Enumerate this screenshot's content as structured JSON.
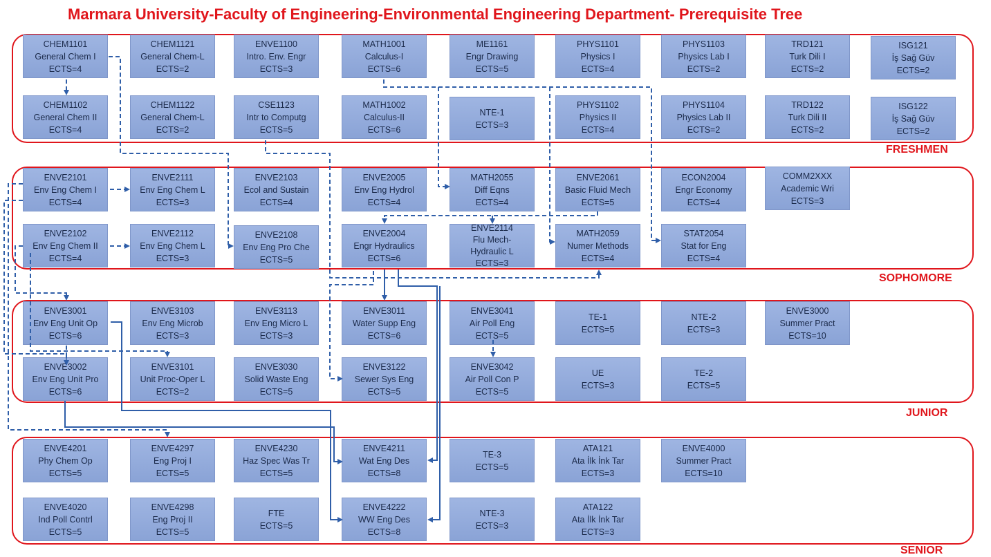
{
  "title": "Marmara University-Faculty of Engineering-Environmental Engineering Department- Prerequisite Tree",
  "colors": {
    "accent": "#e0161c",
    "box": "#8ea6d8",
    "arrow": "#2f5ea8"
  },
  "years": [
    {
      "label": "FRESHMEN"
    },
    {
      "label": "SOPHOMORE"
    },
    {
      "label": "JUNIOR"
    },
    {
      "label": "SENIOR"
    }
  ],
  "courses": [
    {
      "code": "CHEM1101",
      "name": "General Chem I",
      "ects": "ECTS=4"
    },
    {
      "code": "CHEM1121",
      "name": "General Chem-L",
      "ects": "ECTS=2"
    },
    {
      "code": "ENVE1100",
      "name": "Intro. Env. Engr",
      "ects": "ECTS=3"
    },
    {
      "code": "MATH1001",
      "name": "Calculus-I",
      "ects": "ECTS=6"
    },
    {
      "code": "ME1161",
      "name": "Engr Drawing",
      "ects": "ECTS=5"
    },
    {
      "code": "PHYS1101",
      "name": "Physics I",
      "ects": "ECTS=4"
    },
    {
      "code": "PHYS1103",
      "name": "Physics Lab I",
      "ects": "ECTS=2"
    },
    {
      "code": "TRD121",
      "name": "Turk Dili I",
      "ects": "ECTS=2"
    },
    {
      "code": "ISG121",
      "name": "İş Sağ Güv",
      "ects": "ECTS=2"
    },
    {
      "code": "CHEM1102",
      "name": "General Chem II",
      "ects": "ECTS=4"
    },
    {
      "code": "CHEM1122",
      "name": "General Chem-L",
      "ects": "ECTS=2"
    },
    {
      "code": "CSE1123",
      "name": "Intr to Computg",
      "ects": "ECTS=5"
    },
    {
      "code": "MATH1002",
      "name": "Calculus-II",
      "ects": "ECTS=6"
    },
    {
      "code": "",
      "name": "NTE-1",
      "ects": "ECTS=3"
    },
    {
      "code": "PHYS1102",
      "name": "Physics II",
      "ects": "ECTS=4"
    },
    {
      "code": "PHYS1104",
      "name": "Physics Lab II",
      "ects": "ECTS=2"
    },
    {
      "code": "TRD122",
      "name": "Turk Dili II",
      "ects": "ECTS=2"
    },
    {
      "code": "ISG122",
      "name": "İş Sağ Güv",
      "ects": "ECTS=2"
    },
    {
      "code": "ENVE2101",
      "name": "Env Eng Chem I",
      "ects": "ECTS=4"
    },
    {
      "code": "ENVE2111",
      "name": "Env Eng Chem L",
      "ects": "ECTS=3"
    },
    {
      "code": "ENVE2103",
      "name": "Ecol and Sustain",
      "ects": "ECTS=4"
    },
    {
      "code": "ENVE2005",
      "name": "Env Eng Hydrol",
      "ects": "ECTS=4"
    },
    {
      "code": "MATH2055",
      "name": "Diff Eqns",
      "ects": "ECTS=4"
    },
    {
      "code": "ENVE2061",
      "name": "Basic Fluid Mech",
      "ects": "ECTS=5"
    },
    {
      "code": "ECON2004",
      "name": "Engr Economy",
      "ects": "ECTS=4"
    },
    {
      "code": "COMM2XXX",
      "name": "Academic Wri",
      "ects": "ECTS=3"
    },
    {
      "code": "ENVE2102",
      "name": "Env Eng Chem II",
      "ects": "ECTS=4"
    },
    {
      "code": "ENVE2112",
      "name": "Env Eng Chem L",
      "ects": "ECTS=3"
    },
    {
      "code": "ENVE2108",
      "name": "Env Eng Pro Che",
      "ects": "ECTS=5"
    },
    {
      "code": "ENVE2004",
      "name": "Engr Hydraulics",
      "ects": "ECTS=6"
    },
    {
      "code": "ENVE2114",
      "name": "Flu Mech-",
      "name2": "Hydraulic L",
      "ects": "ECTS=3"
    },
    {
      "code": "MATH2059",
      "name": "Numer Methods",
      "ects": "ECTS=4"
    },
    {
      "code": "STAT2054",
      "name": "Stat for Eng",
      "ects": "ECTS=4"
    },
    {
      "code": "ENVE3001",
      "name": "Env Eng Unit Op",
      "ects": "ECTS=6"
    },
    {
      "code": "ENVE3103",
      "name": "Env Eng Microb",
      "ects": "ECTS=3"
    },
    {
      "code": "ENVE3113",
      "name": "Env Eng Micro L",
      "ects": "ECTS=3"
    },
    {
      "code": "ENVE3011",
      "name": "Water Supp Eng",
      "ects": "ECTS=6"
    },
    {
      "code": "ENVE3041",
      "name": "Air Poll Eng",
      "ects": "ECTS=5"
    },
    {
      "code": "",
      "name": "TE-1",
      "ects": "ECTS=5"
    },
    {
      "code": "",
      "name": "NTE-2",
      "ects": "ECTS=3"
    },
    {
      "code": "ENVE3000",
      "name": "Summer Pract",
      "ects": "ECTS=10"
    },
    {
      "code": "ENVE3002",
      "name": "Env Eng Unit Pro",
      "ects": "ECTS=6"
    },
    {
      "code": "ENVE3101",
      "name": "Unit Proc-Oper L",
      "ects": "ECTS=2"
    },
    {
      "code": "ENVE3030",
      "name": "Solid Waste Eng",
      "ects": "ECTS=5"
    },
    {
      "code": "ENVE3122",
      "name": "Sewer Sys Eng",
      "ects": "ECTS=5"
    },
    {
      "code": "ENVE3042",
      "name": "Air Poll Con P",
      "ects": "ECTS=5"
    },
    {
      "code": "",
      "name": "UE",
      "ects": "ECTS=3"
    },
    {
      "code": "",
      "name": "TE-2",
      "ects": "ECTS=5"
    },
    {
      "code": "ENVE4201",
      "name": "Phy Chem Op",
      "ects": "ECTS=5"
    },
    {
      "code": "ENVE4297",
      "name": "Eng Proj I",
      "ects": "ECTS=5"
    },
    {
      "code": "ENVE4230",
      "name": "Haz Spec Was Tr",
      "ects": "ECTS=5"
    },
    {
      "code": "ENVE4211",
      "name": "Wat Eng Des",
      "ects": "ECTS=8"
    },
    {
      "code": "",
      "name": "TE-3",
      "ects": "ECTS=5"
    },
    {
      "code": "ATA121",
      "name": "Ata İlk İnk Tar",
      "ects": "ECTS=3"
    },
    {
      "code": "ENVE4000",
      "name": "Summer Pract",
      "ects": "ECTS=10"
    },
    {
      "code": "ENVE4020",
      "name": "Ind Poll Contrl",
      "ects": "ECTS=5"
    },
    {
      "code": "ENVE4298",
      "name": "Eng Proj II",
      "ects": "ECTS=5"
    },
    {
      "code": "",
      "name": "FTE",
      "ects": "ECTS=5"
    },
    {
      "code": "ENVE4222",
      "name": "WW Eng Des",
      "ects": "ECTS=8"
    },
    {
      "code": "",
      "name": "NTE-3",
      "ects": "ECTS=3"
    },
    {
      "code": "ATA122",
      "name": "Ata İlk İnk Tar",
      "ects": "ECTS=3"
    }
  ]
}
